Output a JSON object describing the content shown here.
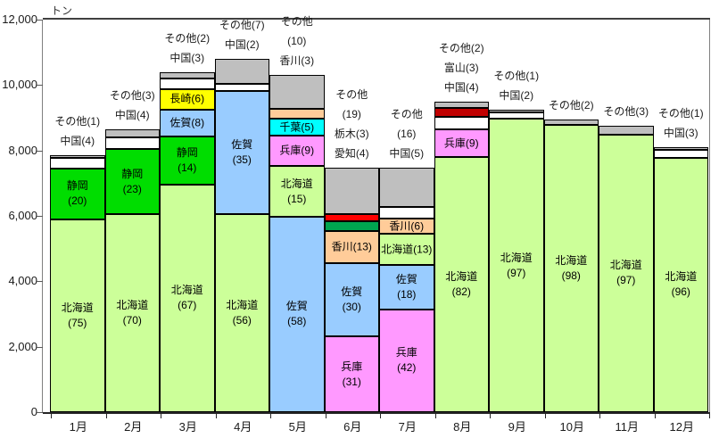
{
  "chart_data": {
    "type": "bar",
    "stacked": true,
    "title": "",
    "ylabel": "トン",
    "xlabel": "",
    "ylim": [
      0,
      12000
    ],
    "grid": false,
    "legend": "none (segments labeled in-chart)",
    "yticks": [
      {
        "value": 0,
        "label": "0"
      },
      {
        "value": 2000,
        "label": "2,000"
      },
      {
        "value": 4000,
        "label": "4,000"
      },
      {
        "value": 6000,
        "label": "6,000"
      },
      {
        "value": 8000,
        "label": "8,000"
      },
      {
        "value": 10000,
        "label": "10,000"
      },
      {
        "value": 12000,
        "label": "12,000"
      }
    ],
    "categories": [
      "1月",
      "2月",
      "3月",
      "4月",
      "5月",
      "6月",
      "7月",
      "8月",
      "9月",
      "10月",
      "11月",
      "12月"
    ],
    "palette": {
      "北海道": "#ccff99",
      "静岡": "#00dd00",
      "佐賀": "#99ccff",
      "長崎": "#ffff00",
      "兵庫": "#ff99ff",
      "千葉": "#00ffff",
      "香川": "#ffcc99",
      "愛知": "#00a550",
      "栃木": "#ff0000",
      "富山": "#c00000",
      "中国": "#ffffff",
      "その他": "#bfbfbf"
    },
    "segment_border_color": "#000000",
    "bars": [
      {
        "category": "1月",
        "total": 7850,
        "segments": [
          {
            "name": "北海道",
            "pct": 75,
            "label_lines": [
              "北海道",
              "(75)"
            ]
          },
          {
            "name": "静岡",
            "pct": 20,
            "label_lines": [
              "静岡",
              "(20)"
            ]
          },
          {
            "name": "中国",
            "pct": 4,
            "label_lines": []
          },
          {
            "name": "その他",
            "pct": 1,
            "label_lines": []
          }
        ],
        "above_lines": [
          "その他(1)",
          "中国(4)"
        ]
      },
      {
        "category": "2月",
        "total": 8650,
        "segments": [
          {
            "name": "北海道",
            "pct": 70,
            "label_lines": [
              "北海道",
              "(70)"
            ]
          },
          {
            "name": "静岡",
            "pct": 23,
            "label_lines": [
              "静岡",
              "(23)"
            ]
          },
          {
            "name": "中国",
            "pct": 4,
            "label_lines": []
          },
          {
            "name": "その他",
            "pct": 3,
            "label_lines": []
          }
        ],
        "above_lines": [
          "その他(3)",
          "中国(4)"
        ]
      },
      {
        "category": "3月",
        "total": 10400,
        "segments": [
          {
            "name": "北海道",
            "pct": 67,
            "label_lines": [
              "北海道",
              "(67)"
            ]
          },
          {
            "name": "静岡",
            "pct": 14,
            "label_lines": [
              "静岡",
              "(14)"
            ]
          },
          {
            "name": "佐賀",
            "pct": 8,
            "label_lines": [
              "佐賀(8)"
            ]
          },
          {
            "name": "長崎",
            "pct": 6,
            "label_lines": [
              "長崎(6)"
            ]
          },
          {
            "name": "中国",
            "pct": 3,
            "label_lines": []
          },
          {
            "name": "その他",
            "pct": 2,
            "label_lines": []
          }
        ],
        "above_lines": [
          "その他(2)",
          "中国(3)"
        ]
      },
      {
        "category": "4月",
        "total": 10800,
        "segments": [
          {
            "name": "北海道",
            "pct": 56,
            "label_lines": [
              "北海道",
              "(56)"
            ]
          },
          {
            "name": "佐賀",
            "pct": 35,
            "label_lines": [
              "佐賀",
              "(35)"
            ]
          },
          {
            "name": "中国",
            "pct": 2,
            "label_lines": []
          },
          {
            "name": "その他",
            "pct": 7,
            "label_lines": []
          }
        ],
        "above_lines": [
          "その他(7)",
          "中国(2)"
        ]
      },
      {
        "category": "5月",
        "total": 10300,
        "segments": [
          {
            "name": "佐賀",
            "pct": 58,
            "label_lines": [
              "佐賀",
              "(58)"
            ]
          },
          {
            "name": "北海道",
            "pct": 15,
            "label_lines": [
              "北海道",
              "(15)"
            ]
          },
          {
            "name": "兵庫",
            "pct": 9,
            "label_lines": [
              "兵庫(9)"
            ]
          },
          {
            "name": "千葉",
            "pct": 5,
            "label_lines": [
              "千葉(5)"
            ]
          },
          {
            "name": "香川",
            "pct": 3,
            "label_lines": []
          },
          {
            "name": "その他",
            "pct": 10,
            "label_lines": []
          }
        ],
        "above_lines": [
          "その他",
          "(10)",
          "香川(3)"
        ]
      },
      {
        "category": "6月",
        "total": 7480,
        "segments": [
          {
            "name": "兵庫",
            "pct": 31,
            "label_lines": [
              "兵庫",
              "(31)"
            ]
          },
          {
            "name": "佐賀",
            "pct": 30,
            "label_lines": [
              "佐賀",
              "(30)"
            ]
          },
          {
            "name": "香川",
            "pct": 13,
            "label_lines": [
              "香川(13)"
            ]
          },
          {
            "name": "愛知",
            "pct": 4,
            "label_lines": []
          },
          {
            "name": "栃木",
            "pct": 3,
            "label_lines": []
          },
          {
            "name": "その他",
            "pct": 19,
            "label_lines": []
          }
        ],
        "above_lines": [
          "その他",
          "(19)",
          "栃木(3)",
          "愛知(4)"
        ]
      },
      {
        "category": "7月",
        "total": 7480,
        "segments": [
          {
            "name": "兵庫",
            "pct": 42,
            "label_lines": [
              "兵庫",
              "(42)"
            ]
          },
          {
            "name": "佐賀",
            "pct": 18,
            "label_lines": [
              "佐賀",
              "(18)"
            ]
          },
          {
            "name": "北海道",
            "pct": 13,
            "label_lines": [
              "北海道(13)"
            ]
          },
          {
            "name": "香川",
            "pct": 6,
            "label_lines": [
              "香川(6)"
            ]
          },
          {
            "name": "中国",
            "pct": 5,
            "label_lines": []
          },
          {
            "name": "その他",
            "pct": 16,
            "label_lines": []
          }
        ],
        "above_lines": [
          "その他",
          "(16)",
          "中国(5)"
        ]
      },
      {
        "category": "8月",
        "total": 9500,
        "segments": [
          {
            "name": "北海道",
            "pct": 82,
            "label_lines": [
              "北海道",
              "(82)"
            ]
          },
          {
            "name": "兵庫",
            "pct": 9,
            "label_lines": [
              "兵庫(9)"
            ]
          },
          {
            "name": "中国",
            "pct": 4,
            "label_lines": []
          },
          {
            "name": "富山",
            "pct": 3,
            "label_lines": []
          },
          {
            "name": "その他",
            "pct": 2,
            "label_lines": []
          }
        ],
        "above_lines": [
          "その他(2)",
          "富山(3)",
          "中国(4)"
        ]
      },
      {
        "category": "9月",
        "total": 9250,
        "segments": [
          {
            "name": "北海道",
            "pct": 97,
            "label_lines": [
              "北海道",
              "(97)"
            ]
          },
          {
            "name": "中国",
            "pct": 2,
            "label_lines": []
          },
          {
            "name": "その他",
            "pct": 1,
            "label_lines": []
          }
        ],
        "above_lines": [
          "その他(1)",
          "中国(2)"
        ]
      },
      {
        "category": "10月",
        "total": 8950,
        "segments": [
          {
            "name": "北海道",
            "pct": 98,
            "label_lines": [
              "北海道",
              "(98)"
            ]
          },
          {
            "name": "その他",
            "pct": 2,
            "label_lines": []
          }
        ],
        "above_lines": [
          "その他(2)"
        ]
      },
      {
        "category": "11月",
        "total": 8750,
        "segments": [
          {
            "name": "北海道",
            "pct": 97,
            "label_lines": [
              "北海道",
              "(97)"
            ]
          },
          {
            "name": "その他",
            "pct": 3,
            "label_lines": []
          }
        ],
        "above_lines": [
          "その他(3)"
        ]
      },
      {
        "category": "12月",
        "total": 8100,
        "segments": [
          {
            "name": "北海道",
            "pct": 96,
            "label_lines": [
              "北海道",
              "(96)"
            ]
          },
          {
            "name": "中国",
            "pct": 3,
            "label_lines": []
          },
          {
            "name": "その他",
            "pct": 1,
            "label_lines": []
          }
        ],
        "above_lines": [
          "その他(1)",
          "中国(3)"
        ]
      }
    ]
  }
}
